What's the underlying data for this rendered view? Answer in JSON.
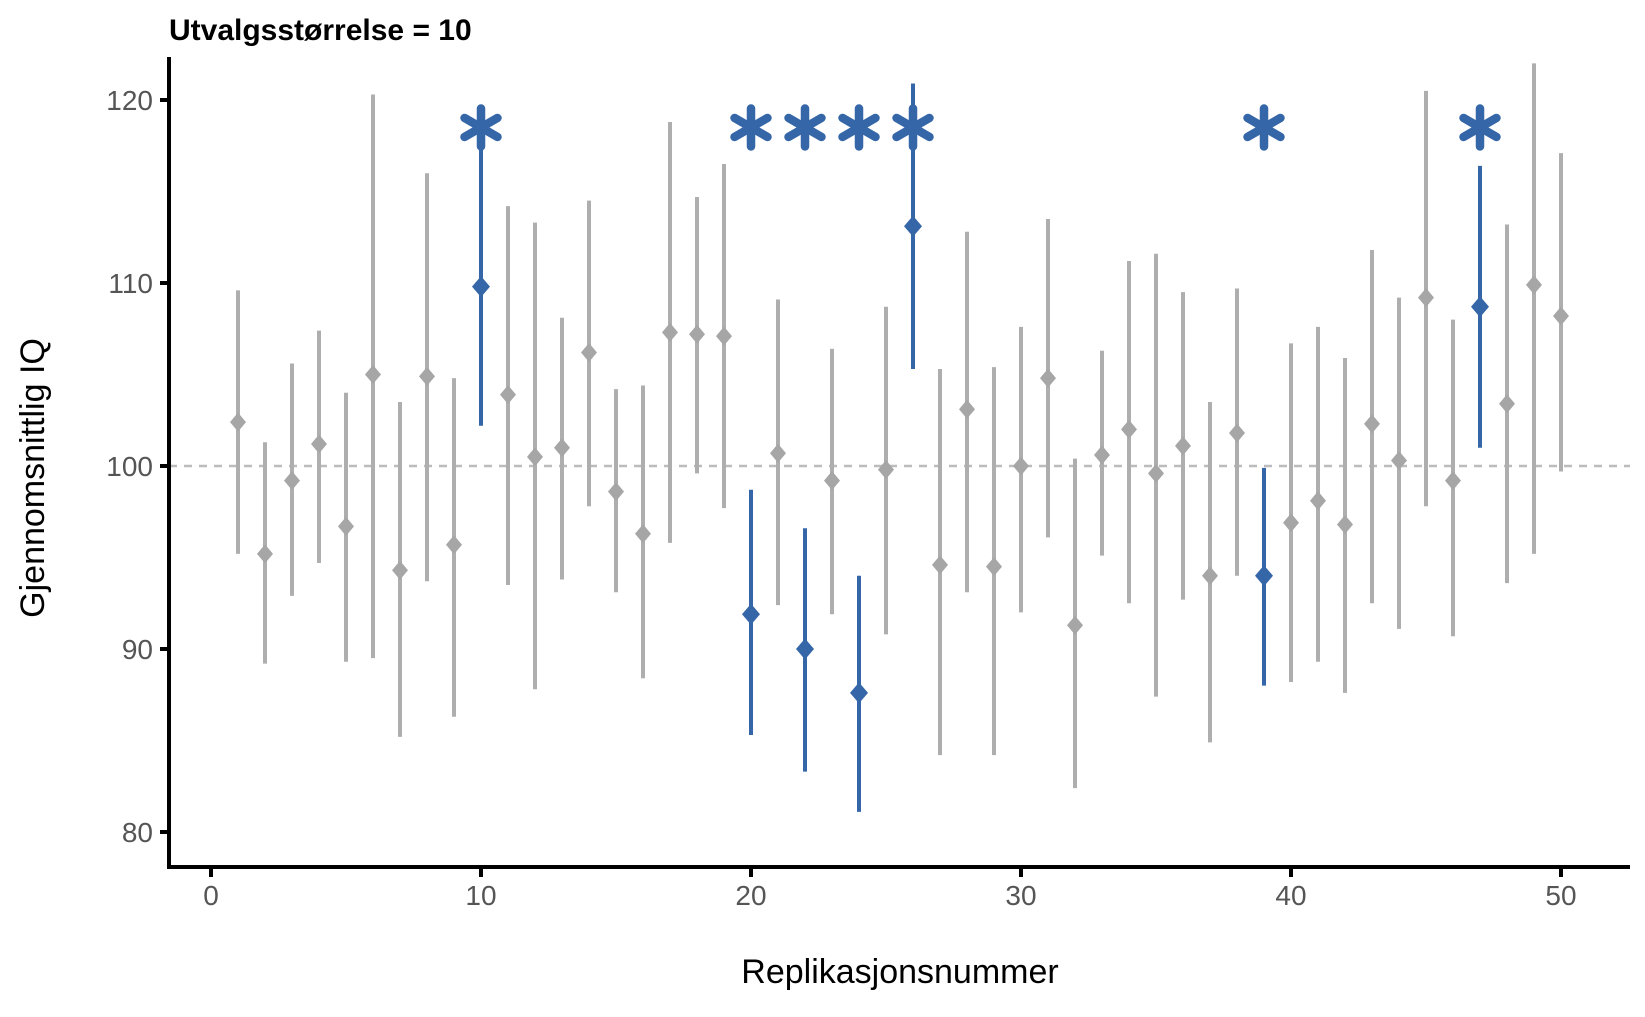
{
  "title": "Utvalgsstørrelse = 10",
  "chart_data": {
    "type": "scatter",
    "subtype": "means-with-confidence-intervals",
    "title": "Utvalgsstørrelse = 10",
    "xlabel": "Replikasjonsnummer",
    "ylabel": "Gjennomsnittlig IQ",
    "x_ticks": [
      0,
      10,
      20,
      30,
      40,
      50
    ],
    "y_ticks": [
      80,
      90,
      100,
      110,
      120
    ],
    "xlim": [
      -1.6,
      52.6
    ],
    "ylim": [
      78.1,
      122.3
    ],
    "grid": "off",
    "legend": "none",
    "reference_line_y": 100,
    "reference_line_style": "dashed",
    "sig_marker": "*",
    "sig_marker_y": 118.5,
    "colors": {
      "significant": "#3566a8",
      "nonsignificant_line": "#aeaeae",
      "nonsignificant_point": "#a6a6a6",
      "reference_line": "#bcbcbc",
      "axis_line": "#000000",
      "tick_label": "#555555",
      "title_text": "#000000"
    },
    "replications": [
      {
        "i": 1,
        "mean": 102.4,
        "lower": 95.2,
        "upper": 109.6,
        "significant": false
      },
      {
        "i": 2,
        "mean": 95.2,
        "lower": 89.2,
        "upper": 101.3,
        "significant": false
      },
      {
        "i": 3,
        "mean": 99.2,
        "lower": 92.9,
        "upper": 105.6,
        "significant": false
      },
      {
        "i": 4,
        "mean": 101.2,
        "lower": 94.7,
        "upper": 107.4,
        "significant": false
      },
      {
        "i": 5,
        "mean": 96.7,
        "lower": 89.3,
        "upper": 104.0,
        "significant": false
      },
      {
        "i": 6,
        "mean": 105.0,
        "lower": 89.5,
        "upper": 120.3,
        "significant": false
      },
      {
        "i": 7,
        "mean": 94.3,
        "lower": 85.2,
        "upper": 103.5,
        "significant": false
      },
      {
        "i": 8,
        "mean": 104.9,
        "lower": 93.7,
        "upper": 116.0,
        "significant": false
      },
      {
        "i": 9,
        "mean": 95.7,
        "lower": 86.3,
        "upper": 104.8,
        "significant": false
      },
      {
        "i": 10,
        "mean": 109.8,
        "lower": 102.2,
        "upper": 117.4,
        "significant": true
      },
      {
        "i": 11,
        "mean": 103.9,
        "lower": 93.5,
        "upper": 114.2,
        "significant": false
      },
      {
        "i": 12,
        "mean": 100.5,
        "lower": 87.8,
        "upper": 113.3,
        "significant": false
      },
      {
        "i": 13,
        "mean": 101.0,
        "lower": 93.8,
        "upper": 108.1,
        "significant": false
      },
      {
        "i": 14,
        "mean": 106.2,
        "lower": 97.8,
        "upper": 114.5,
        "significant": false
      },
      {
        "i": 15,
        "mean": 98.6,
        "lower": 93.1,
        "upper": 104.2,
        "significant": false
      },
      {
        "i": 16,
        "mean": 96.3,
        "lower": 88.4,
        "upper": 104.4,
        "significant": false
      },
      {
        "i": 17,
        "mean": 107.3,
        "lower": 95.8,
        "upper": 118.8,
        "significant": false
      },
      {
        "i": 18,
        "mean": 107.2,
        "lower": 99.6,
        "upper": 114.7,
        "significant": false
      },
      {
        "i": 19,
        "mean": 107.1,
        "lower": 97.7,
        "upper": 116.5,
        "significant": false
      },
      {
        "i": 20,
        "mean": 91.9,
        "lower": 85.3,
        "upper": 98.7,
        "significant": true
      },
      {
        "i": 21,
        "mean": 100.7,
        "lower": 92.4,
        "upper": 109.1,
        "significant": false
      },
      {
        "i": 22,
        "mean": 90.0,
        "lower": 83.3,
        "upper": 96.6,
        "significant": true
      },
      {
        "i": 23,
        "mean": 99.2,
        "lower": 91.9,
        "upper": 106.4,
        "significant": false
      },
      {
        "i": 24,
        "mean": 87.6,
        "lower": 81.1,
        "upper": 94.0,
        "significant": true
      },
      {
        "i": 25,
        "mean": 99.8,
        "lower": 90.8,
        "upper": 108.7,
        "significant": false
      },
      {
        "i": 26,
        "mean": 113.1,
        "lower": 105.3,
        "upper": 120.9,
        "significant": true
      },
      {
        "i": 27,
        "mean": 94.6,
        "lower": 84.2,
        "upper": 105.3,
        "significant": false
      },
      {
        "i": 28,
        "mean": 103.1,
        "lower": 93.1,
        "upper": 112.8,
        "significant": false
      },
      {
        "i": 29,
        "mean": 94.5,
        "lower": 84.2,
        "upper": 105.4,
        "significant": false
      },
      {
        "i": 30,
        "mean": 100.0,
        "lower": 92.0,
        "upper": 107.6,
        "significant": false
      },
      {
        "i": 31,
        "mean": 104.8,
        "lower": 96.1,
        "upper": 113.5,
        "significant": false
      },
      {
        "i": 32,
        "mean": 91.3,
        "lower": 82.4,
        "upper": 100.4,
        "significant": false
      },
      {
        "i": 33,
        "mean": 100.6,
        "lower": 95.1,
        "upper": 106.3,
        "significant": false
      },
      {
        "i": 34,
        "mean": 102.0,
        "lower": 92.5,
        "upper": 111.2,
        "significant": false
      },
      {
        "i": 35,
        "mean": 99.6,
        "lower": 87.4,
        "upper": 111.6,
        "significant": false
      },
      {
        "i": 36,
        "mean": 101.1,
        "lower": 92.7,
        "upper": 109.5,
        "significant": false
      },
      {
        "i": 37,
        "mean": 94.0,
        "lower": 84.9,
        "upper": 103.5,
        "significant": false
      },
      {
        "i": 38,
        "mean": 101.8,
        "lower": 94.0,
        "upper": 109.7,
        "significant": false
      },
      {
        "i": 39,
        "mean": 94.0,
        "lower": 88.0,
        "upper": 99.9,
        "significant": true
      },
      {
        "i": 40,
        "mean": 96.9,
        "lower": 88.2,
        "upper": 106.7,
        "significant": false
      },
      {
        "i": 41,
        "mean": 98.1,
        "lower": 89.3,
        "upper": 107.6,
        "significant": false
      },
      {
        "i": 42,
        "mean": 96.8,
        "lower": 87.6,
        "upper": 105.9,
        "significant": false
      },
      {
        "i": 43,
        "mean": 102.3,
        "lower": 92.5,
        "upper": 111.8,
        "significant": false
      },
      {
        "i": 44,
        "mean": 100.3,
        "lower": 91.1,
        "upper": 109.2,
        "significant": false
      },
      {
        "i": 45,
        "mean": 109.2,
        "lower": 97.8,
        "upper": 120.5,
        "significant": false
      },
      {
        "i": 46,
        "mean": 99.2,
        "lower": 90.7,
        "upper": 108.0,
        "significant": false
      },
      {
        "i": 47,
        "mean": 108.7,
        "lower": 101.0,
        "upper": 116.4,
        "significant": true
      },
      {
        "i": 48,
        "mean": 103.4,
        "lower": 93.6,
        "upper": 113.2,
        "significant": false
      },
      {
        "i": 49,
        "mean": 109.9,
        "lower": 95.2,
        "upper": 122.0,
        "significant": false
      },
      {
        "i": 50,
        "mean": 108.2,
        "lower": 99.7,
        "upper": 117.1,
        "significant": false
      }
    ]
  }
}
